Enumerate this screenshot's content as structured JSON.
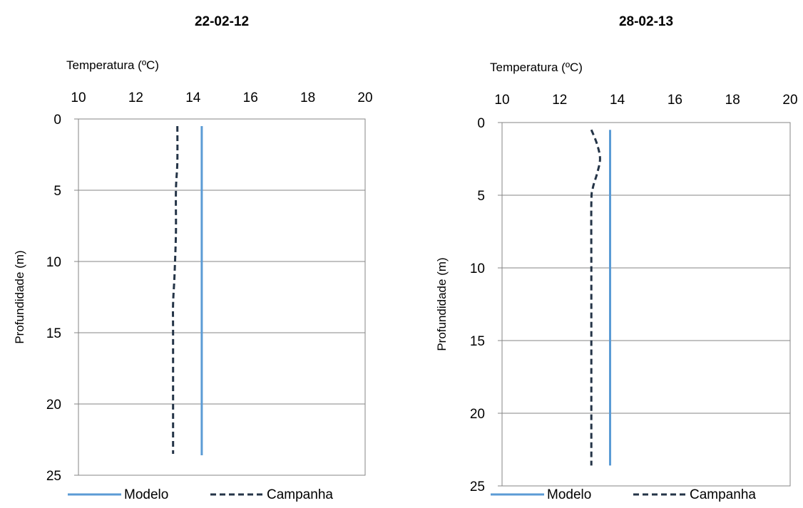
{
  "chart_data": [
    {
      "type": "line",
      "title": "22-02-12",
      "xlabel": "Temperatura (ºC)",
      "ylabel": "Profundidade (m)",
      "xlim": [
        10,
        20
      ],
      "ylim": [
        0,
        25
      ],
      "y_inverted": true,
      "x_axis_position": "top",
      "x_ticks": [
        "10",
        "12",
        "14",
        "16",
        "18",
        "20"
      ],
      "y_ticks": [
        "0",
        "5",
        "10",
        "15",
        "20",
        "25"
      ],
      "grid": "horizontal",
      "legend_position": "bottom",
      "series": [
        {
          "name": "Modelo",
          "color": "#5b9bd5",
          "style": "solid",
          "points": [
            [
              14.3,
              0.5
            ],
            [
              14.3,
              5
            ],
            [
              14.3,
              10
            ],
            [
              14.3,
              15
            ],
            [
              14.3,
              20
            ],
            [
              14.3,
              23.6
            ]
          ]
        },
        {
          "name": "Campanha",
          "color": "#243447",
          "style": "dashed",
          "points": [
            [
              13.45,
              0.5
            ],
            [
              13.45,
              3
            ],
            [
              13.4,
              5
            ],
            [
              13.4,
              8
            ],
            [
              13.35,
              11
            ],
            [
              13.3,
              13
            ],
            [
              13.3,
              15
            ],
            [
              13.3,
              20
            ],
            [
              13.3,
              23.5
            ]
          ]
        }
      ]
    },
    {
      "type": "line",
      "title": "28-02-13",
      "xlabel": "Temperatura (ºC)",
      "ylabel": "Profundidade (m)",
      "xlim": [
        10,
        20
      ],
      "ylim": [
        0,
        25
      ],
      "y_inverted": true,
      "x_axis_position": "top",
      "x_ticks": [
        "10",
        "12",
        "14",
        "16",
        "18",
        "20"
      ],
      "y_ticks": [
        "0",
        "5",
        "10",
        "15",
        "20",
        "25"
      ],
      "grid": "horizontal",
      "legend_position": "bottom",
      "series": [
        {
          "name": "Modelo",
          "color": "#5b9bd5",
          "style": "solid",
          "points": [
            [
              13.75,
              0.5
            ],
            [
              13.75,
              5
            ],
            [
              13.75,
              10
            ],
            [
              13.75,
              15
            ],
            [
              13.75,
              20
            ],
            [
              13.75,
              23.6
            ]
          ]
        },
        {
          "name": "Campanha",
          "color": "#243447",
          "style": "dashed",
          "points": [
            [
              13.1,
              0.5
            ],
            [
              13.3,
              1.5
            ],
            [
              13.4,
              2.5
            ],
            [
              13.3,
              3.5
            ],
            [
              13.15,
              4.5
            ],
            [
              13.1,
              5.5
            ],
            [
              13.1,
              10
            ],
            [
              13.1,
              15
            ],
            [
              13.1,
              20
            ],
            [
              13.1,
              23.6
            ]
          ]
        }
      ]
    }
  ]
}
